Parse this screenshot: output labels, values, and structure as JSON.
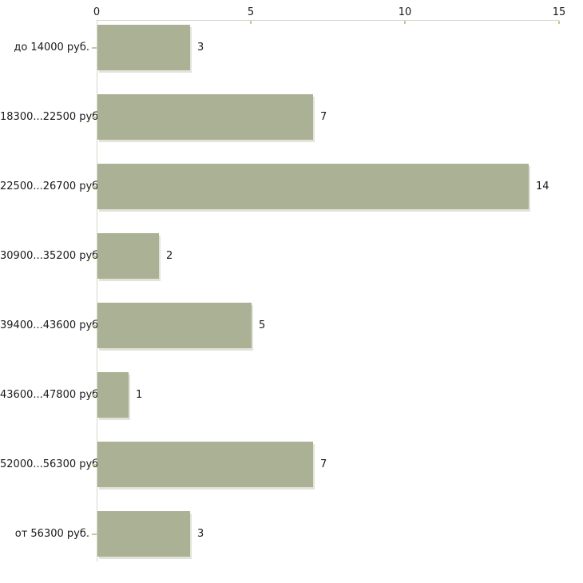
{
  "chart_data": {
    "type": "bar",
    "orientation": "horizontal",
    "title": "",
    "xlabel": "",
    "ylabel": "",
    "xlim": [
      0,
      15
    ],
    "x_ticks": [
      0,
      5,
      10,
      15
    ],
    "grid": false,
    "legend": false,
    "categories": [
      "до 14000 руб.",
      "18300...22500 руб.",
      "22500...26700 руб.",
      "30900...35200 руб.",
      "39400...43600 руб.",
      "43600...47800 руб.",
      "52000...56300 руб.",
      "от 56300 руб."
    ],
    "values": [
      3,
      7,
      14,
      2,
      5,
      1,
      7,
      3
    ],
    "colors": {
      "bar": "#abb194",
      "bar_shadow": "#e3e3d9",
      "axis": "#d6d6cb",
      "tick": "#c9c79c",
      "text": "#1a1a1a",
      "background": "#ffffff"
    }
  }
}
